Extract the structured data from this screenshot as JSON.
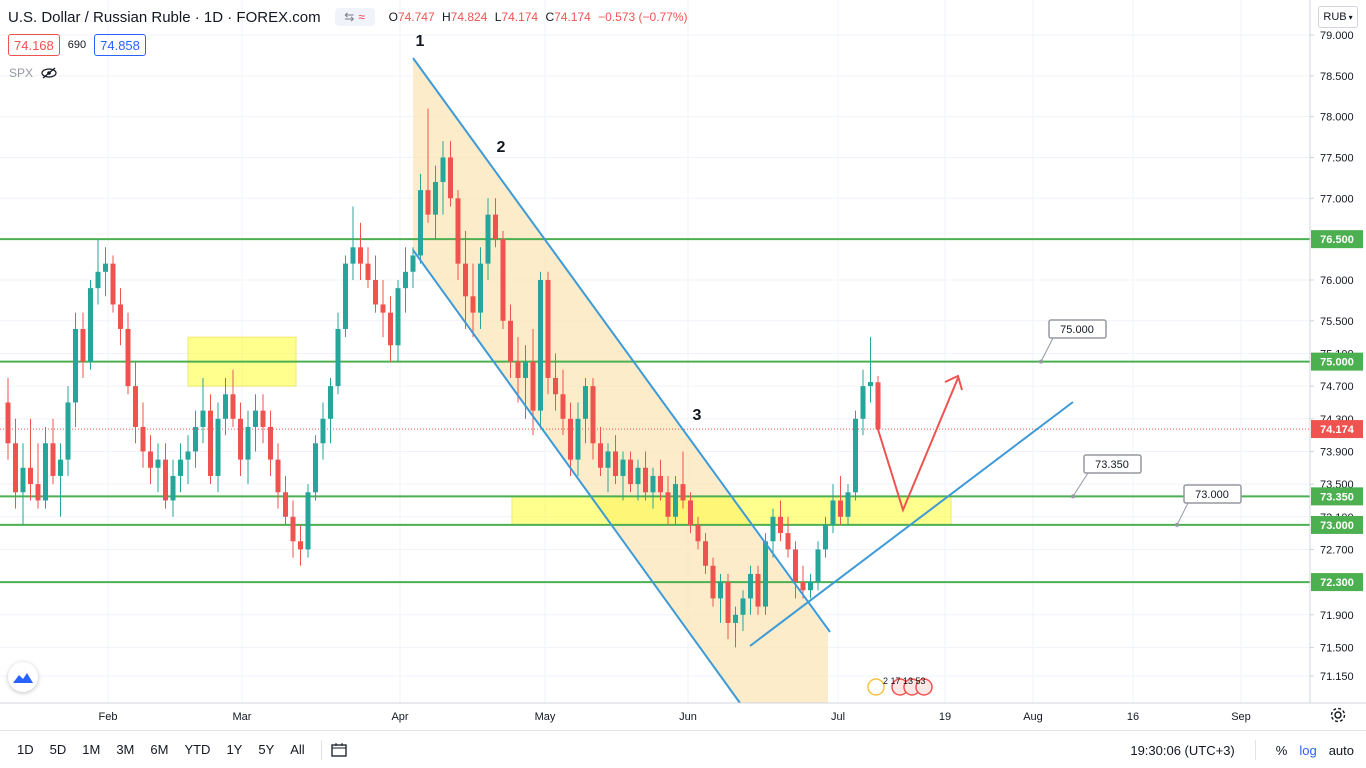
{
  "legend": {
    "title": "U.S. Dollar / Russian Ruble · 1D · FOREX.com",
    "o_label": "O",
    "o": "74.747",
    "h_label": "H",
    "h": "74.824",
    "l_label": "L",
    "l": "74.174",
    "c_label": "C",
    "c": "74.174",
    "change": "−0.573 (−0.77%)"
  },
  "quote": {
    "sell": "74.168",
    "spread": "690",
    "buy": "74.858"
  },
  "indicator": {
    "name": "SPX"
  },
  "currency_button": "RUB",
  "price_axis": {
    "ticks": [
      "79.000",
      "78.500",
      "78.000",
      "77.500",
      "77.000",
      "76.500",
      "76.000",
      "75.500",
      "75.100",
      "74.700",
      "74.300",
      "73.900",
      "73.500",
      "73.100",
      "72.700",
      "72.300",
      "71.900",
      "71.500",
      "71.150"
    ],
    "levels": [
      {
        "value": "76.500",
        "color": "#4caf50"
      },
      {
        "value": "75.000",
        "color": "#4caf50"
      },
      {
        "value": "74.174",
        "color": "#ef5350"
      },
      {
        "value": "73.350",
        "color": "#4caf50"
      },
      {
        "value": "73.000",
        "color": "#4caf50"
      },
      {
        "value": "72.300",
        "color": "#4caf50"
      }
    ]
  },
  "time_axis": {
    "labels": [
      "Feb",
      "Mar",
      "Apr",
      "May",
      "Jun",
      "Jul",
      "19",
      "Aug",
      "16",
      "Sep"
    ]
  },
  "callouts": [
    "75.000",
    "73.350",
    "73.000"
  ],
  "wave_labels": [
    "1",
    "2",
    "3"
  ],
  "event_markers": "2  17 13 53",
  "bottom": {
    "ranges": [
      "1D",
      "5D",
      "1M",
      "3M",
      "6M",
      "YTD",
      "1Y",
      "5Y",
      "All"
    ],
    "time": "19:30:06 (UTC+3)",
    "percent": "%",
    "log": "log",
    "auto": "auto"
  },
  "colors": {
    "up": "#26a69a",
    "down": "#ef5350",
    "level": "#4caf50",
    "channel": "#3d9ad6",
    "arrow": "#ef5350"
  },
  "chart_data": {
    "type": "candlestick",
    "title": "U.S. Dollar / Russian Ruble · 1D · FOREX.com",
    "ylim": [
      71.0,
      79.15
    ],
    "grid": true,
    "horizontal_levels": [
      76.5,
      75.0,
      73.35,
      73.0,
      72.3
    ],
    "last_price": 74.174,
    "candles": [
      {
        "o": 74.5,
        "h": 74.8,
        "l": 73.8,
        "c": 74.0
      },
      {
        "o": 74.0,
        "h": 74.3,
        "l": 73.2,
        "c": 73.4
      },
      {
        "o": 73.4,
        "h": 74.0,
        "l": 73.0,
        "c": 73.7
      },
      {
        "o": 73.7,
        "h": 74.3,
        "l": 73.3,
        "c": 73.5
      },
      {
        "o": 73.5,
        "h": 74.0,
        "l": 73.2,
        "c": 73.3
      },
      {
        "o": 73.3,
        "h": 74.2,
        "l": 73.2,
        "c": 74.0
      },
      {
        "o": 74.0,
        "h": 74.3,
        "l": 73.5,
        "c": 73.6
      },
      {
        "o": 73.6,
        "h": 74.0,
        "l": 73.1,
        "c": 73.8
      },
      {
        "o": 73.8,
        "h": 74.7,
        "l": 73.6,
        "c": 74.5
      },
      {
        "o": 74.5,
        "h": 75.6,
        "l": 74.2,
        "c": 75.4
      },
      {
        "o": 75.4,
        "h": 75.6,
        "l": 74.8,
        "c": 75.0
      },
      {
        "o": 75.0,
        "h": 76.0,
        "l": 74.9,
        "c": 75.9
      },
      {
        "o": 75.9,
        "h": 76.5,
        "l": 75.7,
        "c": 76.1
      },
      {
        "o": 76.1,
        "h": 76.4,
        "l": 75.8,
        "c": 76.2
      },
      {
        "o": 76.2,
        "h": 76.3,
        "l": 75.6,
        "c": 75.7
      },
      {
        "o": 75.7,
        "h": 75.9,
        "l": 75.2,
        "c": 75.4
      },
      {
        "o": 75.4,
        "h": 75.6,
        "l": 74.6,
        "c": 74.7
      },
      {
        "o": 74.7,
        "h": 75.0,
        "l": 74.0,
        "c": 74.2
      },
      {
        "o": 74.2,
        "h": 74.5,
        "l": 73.7,
        "c": 73.9
      },
      {
        "o": 73.9,
        "h": 74.1,
        "l": 73.5,
        "c": 73.7
      },
      {
        "o": 73.7,
        "h": 74.0,
        "l": 73.4,
        "c": 73.8
      },
      {
        "o": 73.8,
        "h": 74.0,
        "l": 73.2,
        "c": 73.3
      },
      {
        "o": 73.3,
        "h": 73.8,
        "l": 73.1,
        "c": 73.6
      },
      {
        "o": 73.6,
        "h": 74.0,
        "l": 73.4,
        "c": 73.8
      },
      {
        "o": 73.8,
        "h": 74.1,
        "l": 73.5,
        "c": 73.9
      },
      {
        "o": 73.9,
        "h": 74.4,
        "l": 73.7,
        "c": 74.2
      },
      {
        "o": 74.2,
        "h": 74.8,
        "l": 74.0,
        "c": 74.4
      },
      {
        "o": 74.4,
        "h": 74.6,
        "l": 73.5,
        "c": 73.6
      },
      {
        "o": 73.6,
        "h": 74.5,
        "l": 73.4,
        "c": 74.3
      },
      {
        "o": 74.3,
        "h": 74.8,
        "l": 74.1,
        "c": 74.6
      },
      {
        "o": 74.6,
        "h": 74.9,
        "l": 74.2,
        "c": 74.3
      },
      {
        "o": 74.3,
        "h": 74.5,
        "l": 73.6,
        "c": 73.8
      },
      {
        "o": 73.8,
        "h": 74.4,
        "l": 73.5,
        "c": 74.2
      },
      {
        "o": 74.2,
        "h": 74.6,
        "l": 73.9,
        "c": 74.4
      },
      {
        "o": 74.4,
        "h": 74.6,
        "l": 74.0,
        "c": 74.2
      },
      {
        "o": 74.2,
        "h": 74.4,
        "l": 73.6,
        "c": 73.8
      },
      {
        "o": 73.8,
        "h": 74.0,
        "l": 73.2,
        "c": 73.4
      },
      {
        "o": 73.4,
        "h": 73.6,
        "l": 73.0,
        "c": 73.1
      },
      {
        "o": 73.1,
        "h": 73.3,
        "l": 72.6,
        "c": 72.8
      },
      {
        "o": 72.8,
        "h": 73.0,
        "l": 72.5,
        "c": 72.7
      },
      {
        "o": 72.7,
        "h": 73.5,
        "l": 72.6,
        "c": 73.4
      },
      {
        "o": 73.4,
        "h": 74.1,
        "l": 73.3,
        "c": 74.0
      },
      {
        "o": 74.0,
        "h": 74.5,
        "l": 73.8,
        "c": 74.3
      },
      {
        "o": 74.3,
        "h": 74.8,
        "l": 74.0,
        "c": 74.7
      },
      {
        "o": 74.7,
        "h": 75.6,
        "l": 74.6,
        "c": 75.4
      },
      {
        "o": 75.4,
        "h": 76.3,
        "l": 75.3,
        "c": 76.2
      },
      {
        "o": 76.2,
        "h": 76.9,
        "l": 76.0,
        "c": 76.4
      },
      {
        "o": 76.4,
        "h": 76.7,
        "l": 76.0,
        "c": 76.2
      },
      {
        "o": 76.2,
        "h": 76.4,
        "l": 75.9,
        "c": 76.0
      },
      {
        "o": 76.0,
        "h": 76.3,
        "l": 75.6,
        "c": 75.7
      },
      {
        "o": 75.7,
        "h": 76.0,
        "l": 75.3,
        "c": 75.6
      },
      {
        "o": 75.6,
        "h": 75.8,
        "l": 75.0,
        "c": 75.2
      },
      {
        "o": 75.2,
        "h": 76.0,
        "l": 75.0,
        "c": 75.9
      },
      {
        "o": 75.9,
        "h": 76.4,
        "l": 75.6,
        "c": 76.1
      },
      {
        "o": 76.1,
        "h": 76.4,
        "l": 75.9,
        "c": 76.3
      },
      {
        "o": 76.3,
        "h": 77.3,
        "l": 76.2,
        "c": 77.1
      },
      {
        "o": 77.1,
        "h": 78.1,
        "l": 76.7,
        "c": 76.8
      },
      {
        "o": 76.8,
        "h": 77.4,
        "l": 76.5,
        "c": 77.2
      },
      {
        "o": 77.2,
        "h": 77.7,
        "l": 76.8,
        "c": 77.5
      },
      {
        "o": 77.5,
        "h": 77.7,
        "l": 76.9,
        "c": 77.0
      },
      {
        "o": 77.0,
        "h": 77.1,
        "l": 76.0,
        "c": 76.2
      },
      {
        "o": 76.2,
        "h": 76.6,
        "l": 75.4,
        "c": 75.8
      },
      {
        "o": 75.8,
        "h": 76.2,
        "l": 75.3,
        "c": 75.6
      },
      {
        "o": 75.6,
        "h": 76.4,
        "l": 75.4,
        "c": 76.2
      },
      {
        "o": 76.2,
        "h": 77.0,
        "l": 76.0,
        "c": 76.8
      },
      {
        "o": 76.8,
        "h": 77.0,
        "l": 76.4,
        "c": 76.5
      },
      {
        "o": 76.5,
        "h": 76.6,
        "l": 75.4,
        "c": 75.5
      },
      {
        "o": 75.5,
        "h": 75.7,
        "l": 74.8,
        "c": 75.0
      },
      {
        "o": 75.0,
        "h": 75.3,
        "l": 74.5,
        "c": 74.8
      },
      {
        "o": 74.8,
        "h": 75.2,
        "l": 74.3,
        "c": 75.0
      },
      {
        "o": 75.0,
        "h": 75.4,
        "l": 74.1,
        "c": 74.4
      },
      {
        "o": 74.4,
        "h": 76.1,
        "l": 74.2,
        "c": 76.0
      },
      {
        "o": 76.0,
        "h": 76.1,
        "l": 74.6,
        "c": 74.8
      },
      {
        "o": 74.8,
        "h": 75.1,
        "l": 74.4,
        "c": 74.6
      },
      {
        "o": 74.6,
        "h": 74.9,
        "l": 74.1,
        "c": 74.3
      },
      {
        "o": 74.3,
        "h": 74.5,
        "l": 73.6,
        "c": 73.8
      },
      {
        "o": 73.8,
        "h": 74.5,
        "l": 73.6,
        "c": 74.3
      },
      {
        "o": 74.3,
        "h": 74.8,
        "l": 74.0,
        "c": 74.7
      },
      {
        "o": 74.7,
        "h": 74.8,
        "l": 73.8,
        "c": 74.0
      },
      {
        "o": 74.0,
        "h": 74.2,
        "l": 73.6,
        "c": 73.7
      },
      {
        "o": 73.7,
        "h": 74.0,
        "l": 73.4,
        "c": 73.9
      },
      {
        "o": 73.9,
        "h": 74.1,
        "l": 73.5,
        "c": 73.6
      },
      {
        "o": 73.6,
        "h": 73.9,
        "l": 73.3,
        "c": 73.8
      },
      {
        "o": 73.8,
        "h": 73.9,
        "l": 73.4,
        "c": 73.5
      },
      {
        "o": 73.5,
        "h": 73.8,
        "l": 73.3,
        "c": 73.7
      },
      {
        "o": 73.7,
        "h": 73.9,
        "l": 73.3,
        "c": 73.4
      },
      {
        "o": 73.4,
        "h": 73.7,
        "l": 73.2,
        "c": 73.6
      },
      {
        "o": 73.6,
        "h": 73.8,
        "l": 73.3,
        "c": 73.4
      },
      {
        "o": 73.4,
        "h": 73.6,
        "l": 73.0,
        "c": 73.1
      },
      {
        "o": 73.1,
        "h": 73.6,
        "l": 73.0,
        "c": 73.5
      },
      {
        "o": 73.5,
        "h": 73.9,
        "l": 73.2,
        "c": 73.3
      },
      {
        "o": 73.3,
        "h": 73.4,
        "l": 72.9,
        "c": 73.0
      },
      {
        "o": 73.0,
        "h": 73.1,
        "l": 72.7,
        "c": 72.8
      },
      {
        "o": 72.8,
        "h": 72.9,
        "l": 72.4,
        "c": 72.5
      },
      {
        "o": 72.5,
        "h": 72.6,
        "l": 72.0,
        "c": 72.1
      },
      {
        "o": 72.1,
        "h": 72.4,
        "l": 71.8,
        "c": 72.3
      },
      {
        "o": 72.3,
        "h": 72.4,
        "l": 71.6,
        "c": 71.8
      },
      {
        "o": 71.8,
        "h": 72.0,
        "l": 71.5,
        "c": 71.9
      },
      {
        "o": 71.9,
        "h": 72.2,
        "l": 71.7,
        "c": 72.1
      },
      {
        "o": 72.1,
        "h": 72.5,
        "l": 71.9,
        "c": 72.4
      },
      {
        "o": 72.4,
        "h": 72.5,
        "l": 71.9,
        "c": 72.0
      },
      {
        "o": 72.0,
        "h": 72.9,
        "l": 71.9,
        "c": 72.8
      },
      {
        "o": 72.8,
        "h": 73.2,
        "l": 72.6,
        "c": 73.1
      },
      {
        "o": 73.1,
        "h": 73.3,
        "l": 72.8,
        "c": 72.9
      },
      {
        "o": 72.9,
        "h": 73.1,
        "l": 72.6,
        "c": 72.7
      },
      {
        "o": 72.7,
        "h": 72.8,
        "l": 72.1,
        "c": 72.3
      },
      {
        "o": 72.3,
        "h": 72.5,
        "l": 72.1,
        "c": 72.2
      },
      {
        "o": 72.2,
        "h": 72.4,
        "l": 72.1,
        "c": 72.3
      },
      {
        "o": 72.3,
        "h": 72.8,
        "l": 72.2,
        "c": 72.7
      },
      {
        "o": 72.7,
        "h": 73.1,
        "l": 72.6,
        "c": 73.0
      },
      {
        "o": 73.0,
        "h": 73.5,
        "l": 72.9,
        "c": 73.3
      },
      {
        "o": 73.3,
        "h": 73.6,
        "l": 73.0,
        "c": 73.1
      },
      {
        "o": 73.1,
        "h": 73.5,
        "l": 73.0,
        "c": 73.4
      },
      {
        "o": 73.4,
        "h": 74.4,
        "l": 73.3,
        "c": 74.3
      },
      {
        "o": 74.3,
        "h": 74.9,
        "l": 74.1,
        "c": 74.7
      },
      {
        "o": 74.7,
        "h": 75.3,
        "l": 74.5,
        "c": 74.75
      },
      {
        "o": 74.747,
        "h": 74.824,
        "l": 74.174,
        "c": 74.174
      }
    ]
  }
}
